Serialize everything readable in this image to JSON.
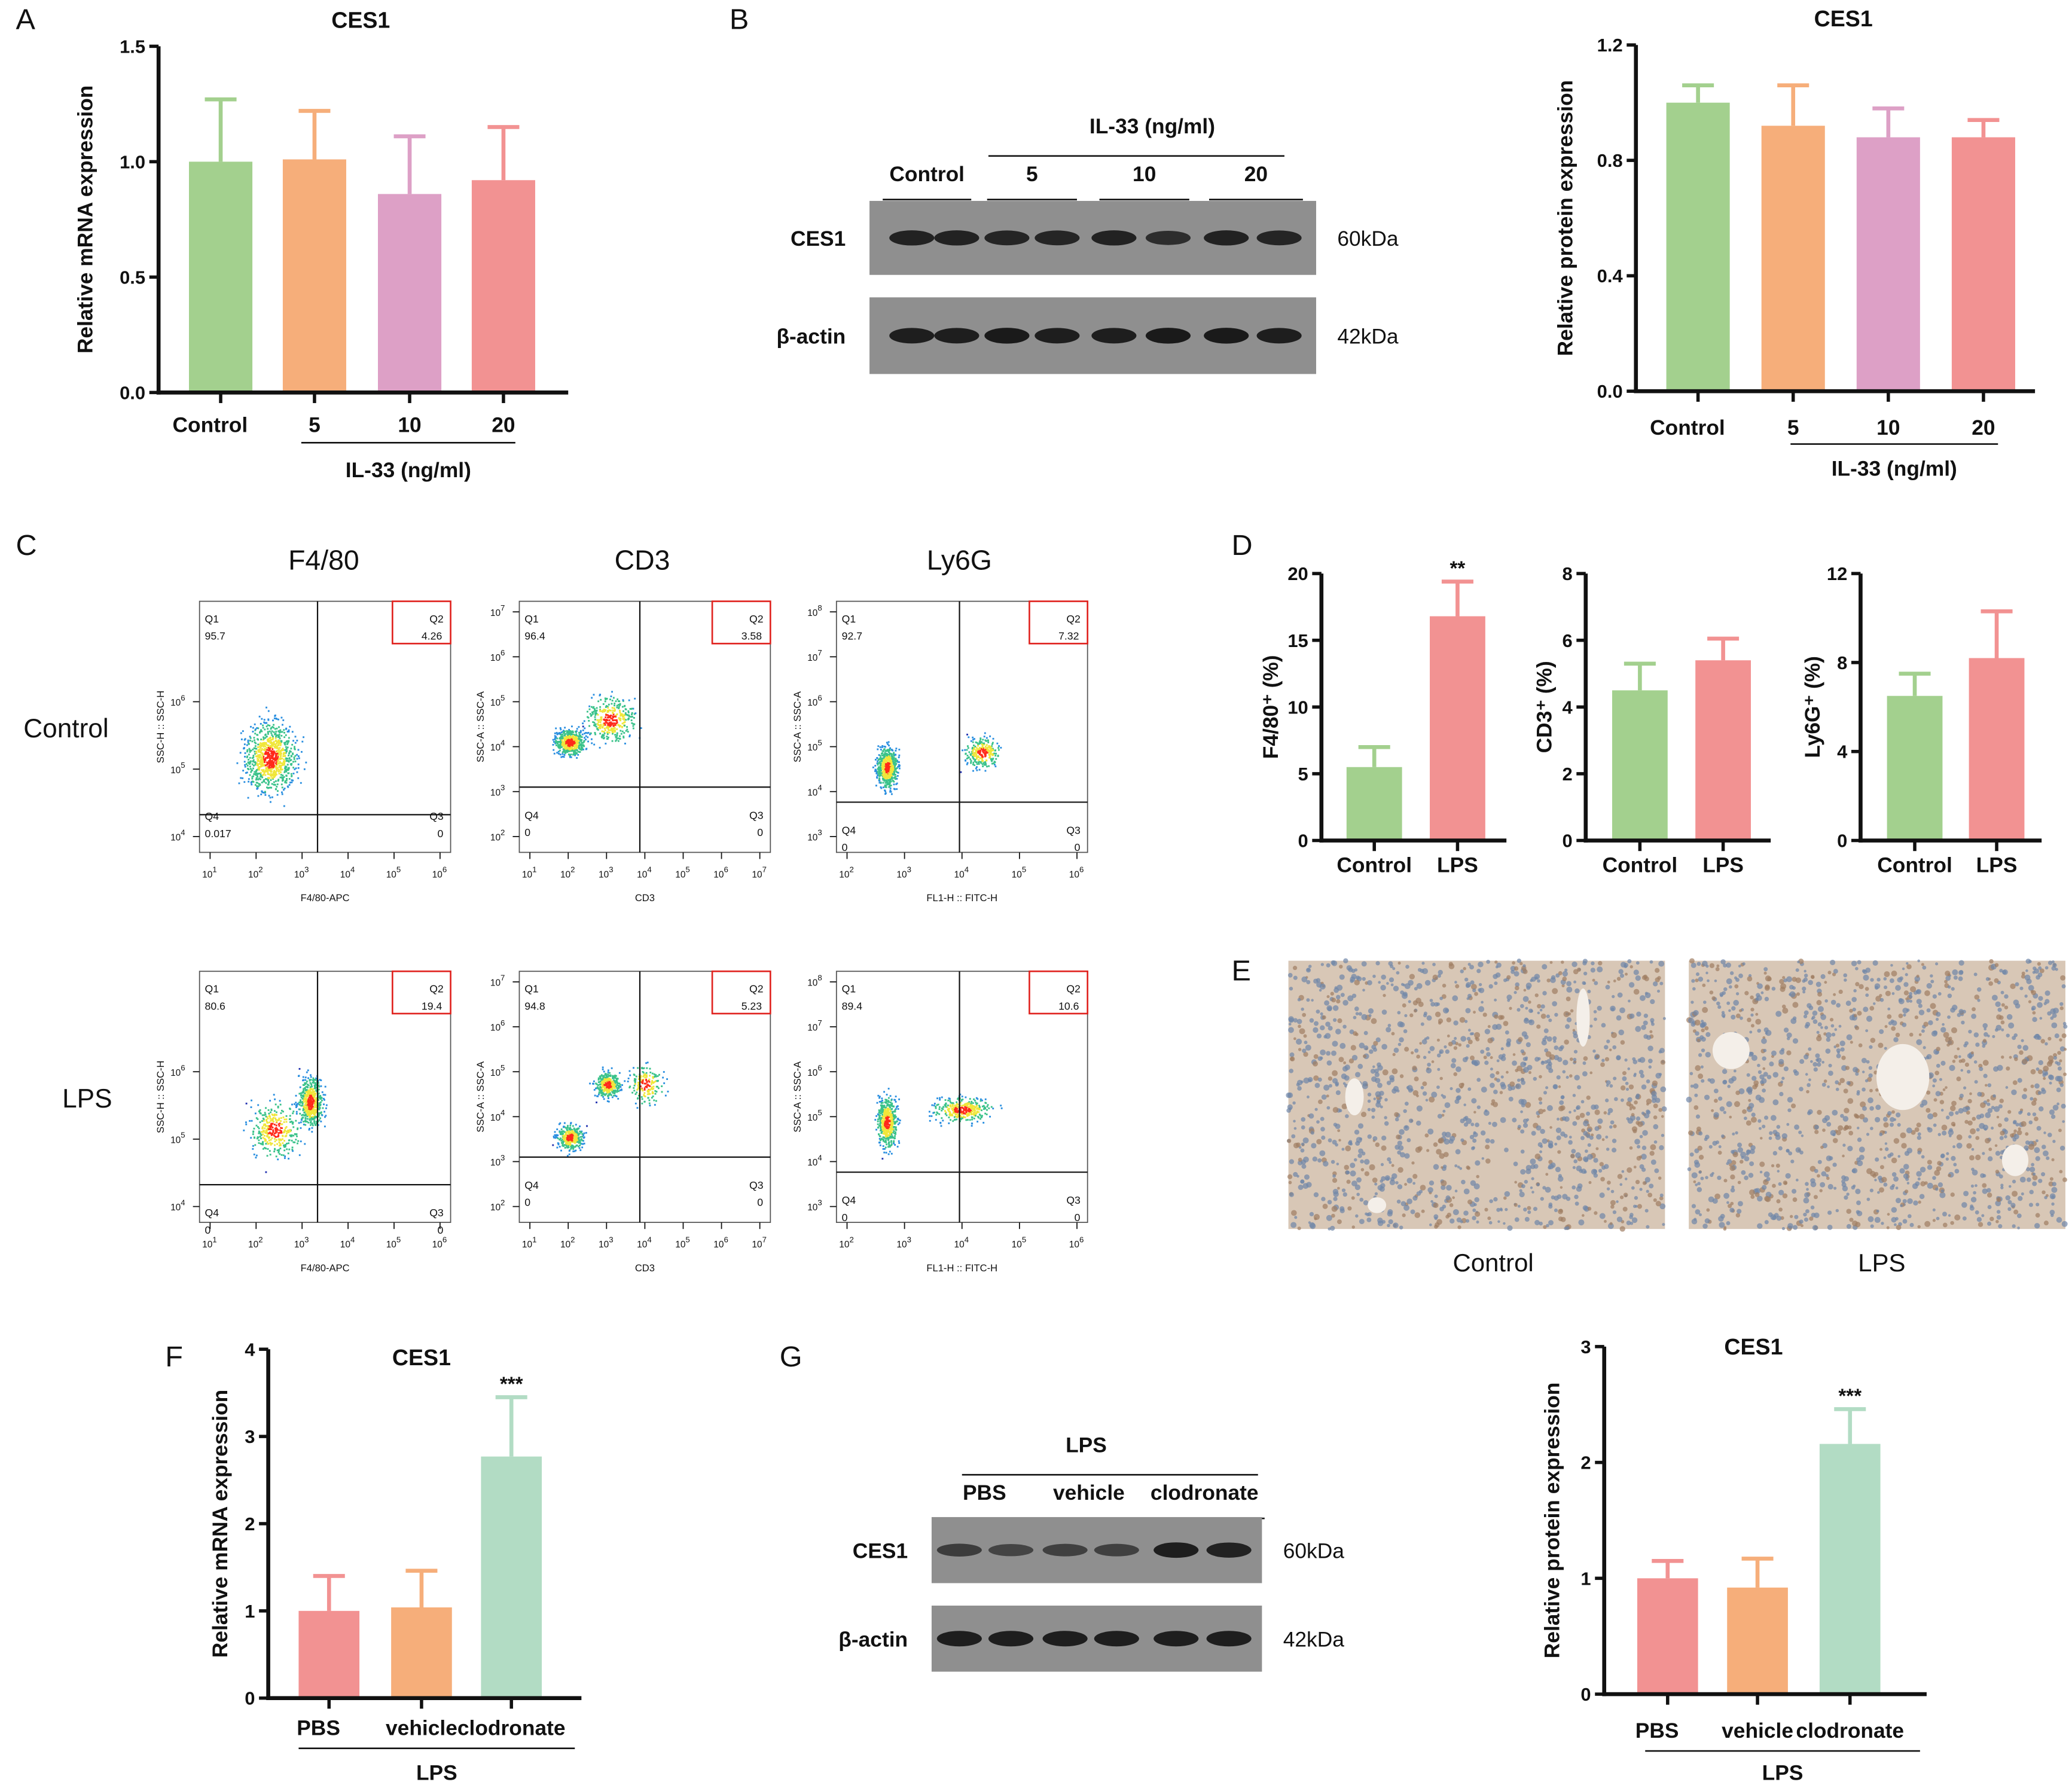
{
  "panel_letters": [
    "A",
    "B",
    "C",
    "D",
    "E",
    "F",
    "G"
  ],
  "chart_data": [
    {
      "id": "A",
      "type": "bar",
      "title": "CES1",
      "ylabel": "Relative mRNA expression",
      "ylim": [
        0,
        1.5
      ],
      "yticks": [
        "0.0",
        "0.5",
        "1.0",
        "1.5"
      ],
      "categories": [
        "Control",
        "5",
        "10",
        "20"
      ],
      "group_label": "IL-33 (ng/ml)",
      "values": [
        1.0,
        1.01,
        0.86,
        0.92
      ],
      "errors": [
        0.27,
        0.21,
        0.25,
        0.23
      ],
      "colors": [
        "#a3d08e",
        "#f6ae7a",
        "#dda0c6",
        "#f29292"
      ],
      "significance": [
        "",
        "",
        "",
        ""
      ]
    },
    {
      "id": "B",
      "type": "bar",
      "title": "CES1",
      "ylabel": "Relative protein expression",
      "ylim": [
        0,
        1.2
      ],
      "yticks": [
        "0.0",
        "0.4",
        "0.8",
        "1.2"
      ],
      "categories": [
        "Control",
        "5",
        "10",
        "20"
      ],
      "group_label": "IL-33 (ng/ml)",
      "values": [
        1.0,
        0.92,
        0.88,
        0.88
      ],
      "errors": [
        0.06,
        0.14,
        0.1,
        0.06
      ],
      "colors": [
        "#a3d08e",
        "#f6ae7a",
        "#dda0c6",
        "#f29292"
      ],
      "significance": [
        "",
        "",
        "",
        ""
      ]
    },
    {
      "id": "D1",
      "type": "bar",
      "title": "",
      "ylabel": "F4/80⁺ (%)",
      "ylim": [
        0,
        20
      ],
      "yticks": [
        "0",
        "5",
        "10",
        "15",
        "20"
      ],
      "categories": [
        "Control",
        "LPS"
      ],
      "group_label": "",
      "values": [
        5.5,
        16.8
      ],
      "errors": [
        1.5,
        2.6
      ],
      "colors": [
        "#a3d08e",
        "#f29292"
      ],
      "significance": [
        "",
        "**"
      ]
    },
    {
      "id": "D2",
      "type": "bar",
      "title": "",
      "ylabel": "CD3⁺ (%)",
      "ylim": [
        0,
        8
      ],
      "yticks": [
        "0",
        "2",
        "4",
        "6",
        "8"
      ],
      "categories": [
        "Control",
        "LPS"
      ],
      "group_label": "",
      "values": [
        4.5,
        5.4
      ],
      "errors": [
        0.8,
        0.65
      ],
      "colors": [
        "#a3d08e",
        "#f29292"
      ],
      "significance": [
        "",
        ""
      ]
    },
    {
      "id": "D3",
      "type": "bar",
      "title": "",
      "ylabel": "Ly6G⁺ (%)",
      "ylim": [
        0,
        12
      ],
      "yticks": [
        "0",
        "4",
        "8",
        "12"
      ],
      "categories": [
        "Control",
        "LPS"
      ],
      "group_label": "",
      "values": [
        6.5,
        8.2
      ],
      "errors": [
        1.0,
        2.1
      ],
      "colors": [
        "#a3d08e",
        "#f29292"
      ],
      "significance": [
        "",
        ""
      ]
    },
    {
      "id": "F",
      "type": "bar",
      "title": "CES1",
      "ylabel": "Relative mRNA expression",
      "ylim": [
        0,
        4
      ],
      "yticks": [
        "0",
        "1",
        "2",
        "3",
        "4"
      ],
      "categories": [
        "PBS",
        "vehicle",
        "clodronate"
      ],
      "group_label": "LPS",
      "values": [
        1.0,
        1.04,
        2.77
      ],
      "errors": [
        0.4,
        0.42,
        0.68
      ],
      "colors": [
        "#f29292",
        "#f6ae7a",
        "#b2dcc4"
      ],
      "significance": [
        "",
        "",
        "***"
      ]
    },
    {
      "id": "G",
      "type": "bar",
      "title": "CES1",
      "ylabel": "Relative protein expression",
      "ylim": [
        0,
        3
      ],
      "yticks": [
        "0",
        "1",
        "2",
        "3"
      ],
      "categories": [
        "PBS",
        "vehicle",
        "clodronate"
      ],
      "group_label": "LPS",
      "values": [
        1.0,
        0.92,
        2.16
      ],
      "errors": [
        0.15,
        0.25,
        0.3
      ],
      "colors": [
        "#f29292",
        "#f6ae7a",
        "#b2dcc4"
      ],
      "significance": [
        "",
        "",
        "***"
      ]
    }
  ],
  "western_B": {
    "header": "IL-33 (ng/ml)",
    "groups": [
      "Control",
      "5",
      "10",
      "20"
    ],
    "rows": [
      {
        "label": "CES1",
        "size": "60kDa",
        "intensity": [
          0.9,
          0.9,
          0.85,
          0.85,
          0.9,
          0.75,
          0.9,
          0.85
        ]
      },
      {
        "label": "β-actin",
        "size": "42kDa",
        "intensity": [
          0.95,
          0.95,
          1,
          0.95,
          0.95,
          1,
          1,
          0.95
        ]
      }
    ]
  },
  "western_G": {
    "header": "LPS",
    "groups": [
      "PBS",
      "vehicle",
      "clodronate"
    ],
    "rows": [
      {
        "label": "CES1",
        "size": "60kDa",
        "intensity": [
          0.55,
          0.45,
          0.5,
          0.5,
          0.95,
          0.9
        ]
      },
      {
        "label": "β-actin",
        "size": "42kDa",
        "intensity": [
          0.95,
          0.95,
          0.95,
          0.95,
          0.95,
          0.95
        ]
      }
    ]
  },
  "flow_cytometry": {
    "markers": [
      "F4/80",
      "CD3",
      "Ly6G"
    ],
    "rows": [
      "Control",
      "LPS"
    ],
    "axes": [
      {
        "x": "F4/80-APC",
        "y": "SSC-H :: SSC-H",
        "xexp": [
          "1",
          "2",
          "3",
          "4",
          "5",
          "6"
        ],
        "yexp": [
          "4",
          "5",
          "6"
        ]
      },
      {
        "x": "CD3",
        "y": "SSC-A :: SSC-A",
        "xexp": [
          "1",
          "2",
          "3",
          "4",
          "5",
          "6",
          "7"
        ],
        "yexp": [
          "2",
          "3",
          "4",
          "5",
          "6",
          "7"
        ]
      },
      {
        "x": "FL1-H :: FITC-H",
        "y": "SSC-A :: SSC-A",
        "xexp": [
          "2",
          "3",
          "4",
          "5",
          "6"
        ],
        "yexp": [
          "3",
          "4",
          "5",
          "6",
          "7",
          "8"
        ]
      }
    ],
    "plots": [
      [
        {
          "Q1": "95.7",
          "Q2": "4.26",
          "Q3": "0",
          "Q4": "0.017"
        },
        {
          "Q1": "96.4",
          "Q2": "3.58",
          "Q3": "0",
          "Q4": "0"
        },
        {
          "Q1": "92.7",
          "Q2": "7.32",
          "Q3": "0",
          "Q4": "0"
        }
      ],
      [
        {
          "Q1": "80.6",
          "Q2": "19.4",
          "Q3": "0",
          "Q4": "0"
        },
        {
          "Q1": "94.8",
          "Q2": "5.23",
          "Q3": "0",
          "Q4": "0"
        },
        {
          "Q1": "89.4",
          "Q2": "10.6",
          "Q3": "0",
          "Q4": "0"
        }
      ]
    ],
    "gate_color": "#e0231f"
  },
  "histology": {
    "labels": [
      "Control",
      "LPS"
    ]
  }
}
